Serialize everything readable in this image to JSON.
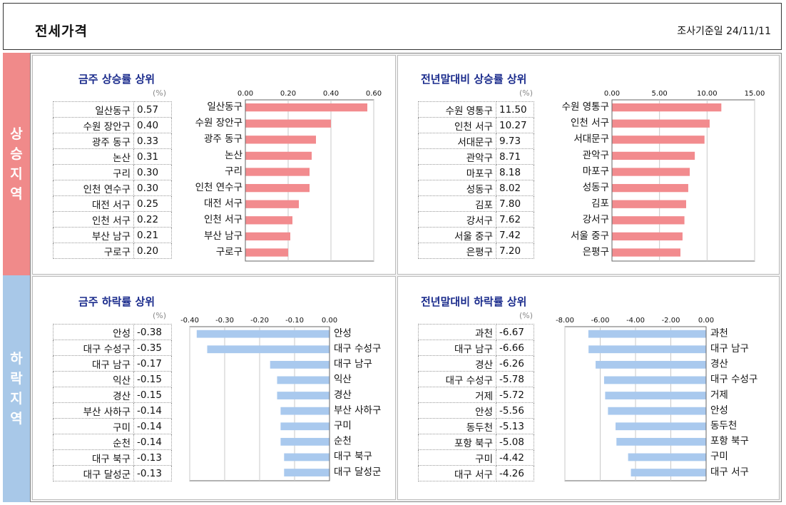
{
  "header": {
    "title": "전세가격",
    "date": "조사기준일   24/11/11"
  },
  "sections": {
    "up": "상승지역",
    "down": "하락지역"
  },
  "colors": {
    "up": "#f28b8e",
    "down": "#a9c9ee",
    "accent": "#1a2b8c"
  },
  "panels": [
    {
      "title": "금주 상승률 상위",
      "unit": "(%)",
      "rows": [
        {
          "name": "일산동구",
          "value": "0.57"
        },
        {
          "name": "수원 장안구",
          "value": "0.40"
        },
        {
          "name": "광주 동구",
          "value": "0.33"
        },
        {
          "name": "논산",
          "value": "0.31"
        },
        {
          "name": "구리",
          "value": "0.30"
        },
        {
          "name": "인천 연수구",
          "value": "0.30"
        },
        {
          "name": "대전 서구",
          "value": "0.25"
        },
        {
          "name": "인천 서구",
          "value": "0.22"
        },
        {
          "name": "부산 남구",
          "value": "0.21"
        },
        {
          "name": "구로구",
          "value": "0.20"
        }
      ]
    },
    {
      "title": "전년말대비 상승률 상위",
      "unit": "(%)",
      "rows": [
        {
          "name": "수원 영통구",
          "value": "11.50"
        },
        {
          "name": "인천 서구",
          "value": "10.27"
        },
        {
          "name": "서대문구",
          "value": "9.73"
        },
        {
          "name": "관악구",
          "value": "8.71"
        },
        {
          "name": "마포구",
          "value": "8.18"
        },
        {
          "name": "성동구",
          "value": "8.02"
        },
        {
          "name": "김포",
          "value": "7.80"
        },
        {
          "name": "강서구",
          "value": "7.62"
        },
        {
          "name": "서울 중구",
          "value": "7.42"
        },
        {
          "name": "은평구",
          "value": "7.20"
        }
      ]
    },
    {
      "title": "금주 하락률 상위",
      "unit": "(%)",
      "rows": [
        {
          "name": "안성",
          "value": "-0.38"
        },
        {
          "name": "대구 수성구",
          "value": "-0.35"
        },
        {
          "name": "대구 남구",
          "value": "-0.17"
        },
        {
          "name": "익산",
          "value": "-0.15"
        },
        {
          "name": "경산",
          "value": "-0.15"
        },
        {
          "name": "부산 사하구",
          "value": "-0.14"
        },
        {
          "name": "구미",
          "value": "-0.14"
        },
        {
          "name": "순천",
          "value": "-0.14"
        },
        {
          "name": "대구 북구",
          "value": "-0.13"
        },
        {
          "name": "대구 달성군",
          "value": "-0.13"
        }
      ]
    },
    {
      "title": "전년말대비 하락률 상위",
      "unit": "(%)",
      "rows": [
        {
          "name": "과천",
          "value": "-6.67"
        },
        {
          "name": "대구 남구",
          "value": "-6.66"
        },
        {
          "name": "경산",
          "value": "-6.26"
        },
        {
          "name": "대구 수성구",
          "value": "-5.78"
        },
        {
          "name": "거제",
          "value": "-5.72"
        },
        {
          "name": "안성",
          "value": "-5.56"
        },
        {
          "name": "동두천",
          "value": "-5.13"
        },
        {
          "name": "포항 북구",
          "value": "-5.08"
        },
        {
          "name": "구미",
          "value": "-4.42"
        },
        {
          "name": "대구 서구",
          "value": "-4.26"
        }
      ]
    }
  ],
  "chart_data": [
    {
      "type": "bar",
      "orientation": "horizontal",
      "categories": [
        "일산동구",
        "수원 장안구",
        "광주 동구",
        "논산",
        "구리",
        "인천 연수구",
        "대전 서구",
        "인천 서구",
        "부산 남구",
        "구로구"
      ],
      "values": [
        0.57,
        0.4,
        0.33,
        0.31,
        0.3,
        0.3,
        0.25,
        0.22,
        0.21,
        0.2
      ],
      "xlim": [
        0,
        0.6
      ],
      "ticks": [
        "0.00",
        "0.20",
        "0.40",
        "0.60"
      ],
      "tick_values": [
        0,
        0.2,
        0.4,
        0.6
      ],
      "grid": true,
      "color": "#f28b8e",
      "labels": "left"
    },
    {
      "type": "bar",
      "orientation": "horizontal",
      "categories": [
        "수원 영통구",
        "인천 서구",
        "서대문구",
        "관악구",
        "마포구",
        "성동구",
        "김포",
        "강서구",
        "서울 중구",
        "은평구"
      ],
      "values": [
        11.5,
        10.27,
        9.73,
        8.71,
        8.18,
        8.02,
        7.8,
        7.62,
        7.42,
        7.2
      ],
      "xlim": [
        0,
        15
      ],
      "ticks": [
        "0.00",
        "5.00",
        "10.00",
        "15.00"
      ],
      "tick_values": [
        0,
        5,
        10,
        15
      ],
      "grid": true,
      "color": "#f28b8e",
      "labels": "left"
    },
    {
      "type": "bar",
      "orientation": "horizontal",
      "categories": [
        "안성",
        "대구 수성구",
        "대구 남구",
        "익산",
        "경산",
        "부산 사하구",
        "구미",
        "순천",
        "대구 북구",
        "대구 달성군"
      ],
      "values": [
        -0.38,
        -0.35,
        -0.17,
        -0.15,
        -0.15,
        -0.14,
        -0.14,
        -0.14,
        -0.13,
        -0.13
      ],
      "xlim": [
        -0.4,
        0
      ],
      "ticks": [
        "-0.40",
        "-0.30",
        "-0.20",
        "-0.10",
        "0.00"
      ],
      "tick_values": [
        -0.4,
        -0.3,
        -0.2,
        -0.1,
        0
      ],
      "grid": true,
      "color": "#a9c9ee",
      "labels": "right"
    },
    {
      "type": "bar",
      "orientation": "horizontal",
      "categories": [
        "과천",
        "대구 남구",
        "경산",
        "대구 수성구",
        "거제",
        "안성",
        "동두천",
        "포항 북구",
        "구미",
        "대구 서구"
      ],
      "values": [
        -6.67,
        -6.66,
        -6.26,
        -5.78,
        -5.72,
        -5.56,
        -5.13,
        -5.08,
        -4.42,
        -4.26
      ],
      "xlim": [
        -8,
        0
      ],
      "ticks": [
        "-8.00",
        "-6.00",
        "-4.00",
        "-2.00",
        "0.00"
      ],
      "tick_values": [
        -8,
        -6,
        -4,
        -2,
        0
      ],
      "grid": true,
      "color": "#a9c9ee",
      "labels": "right"
    }
  ]
}
